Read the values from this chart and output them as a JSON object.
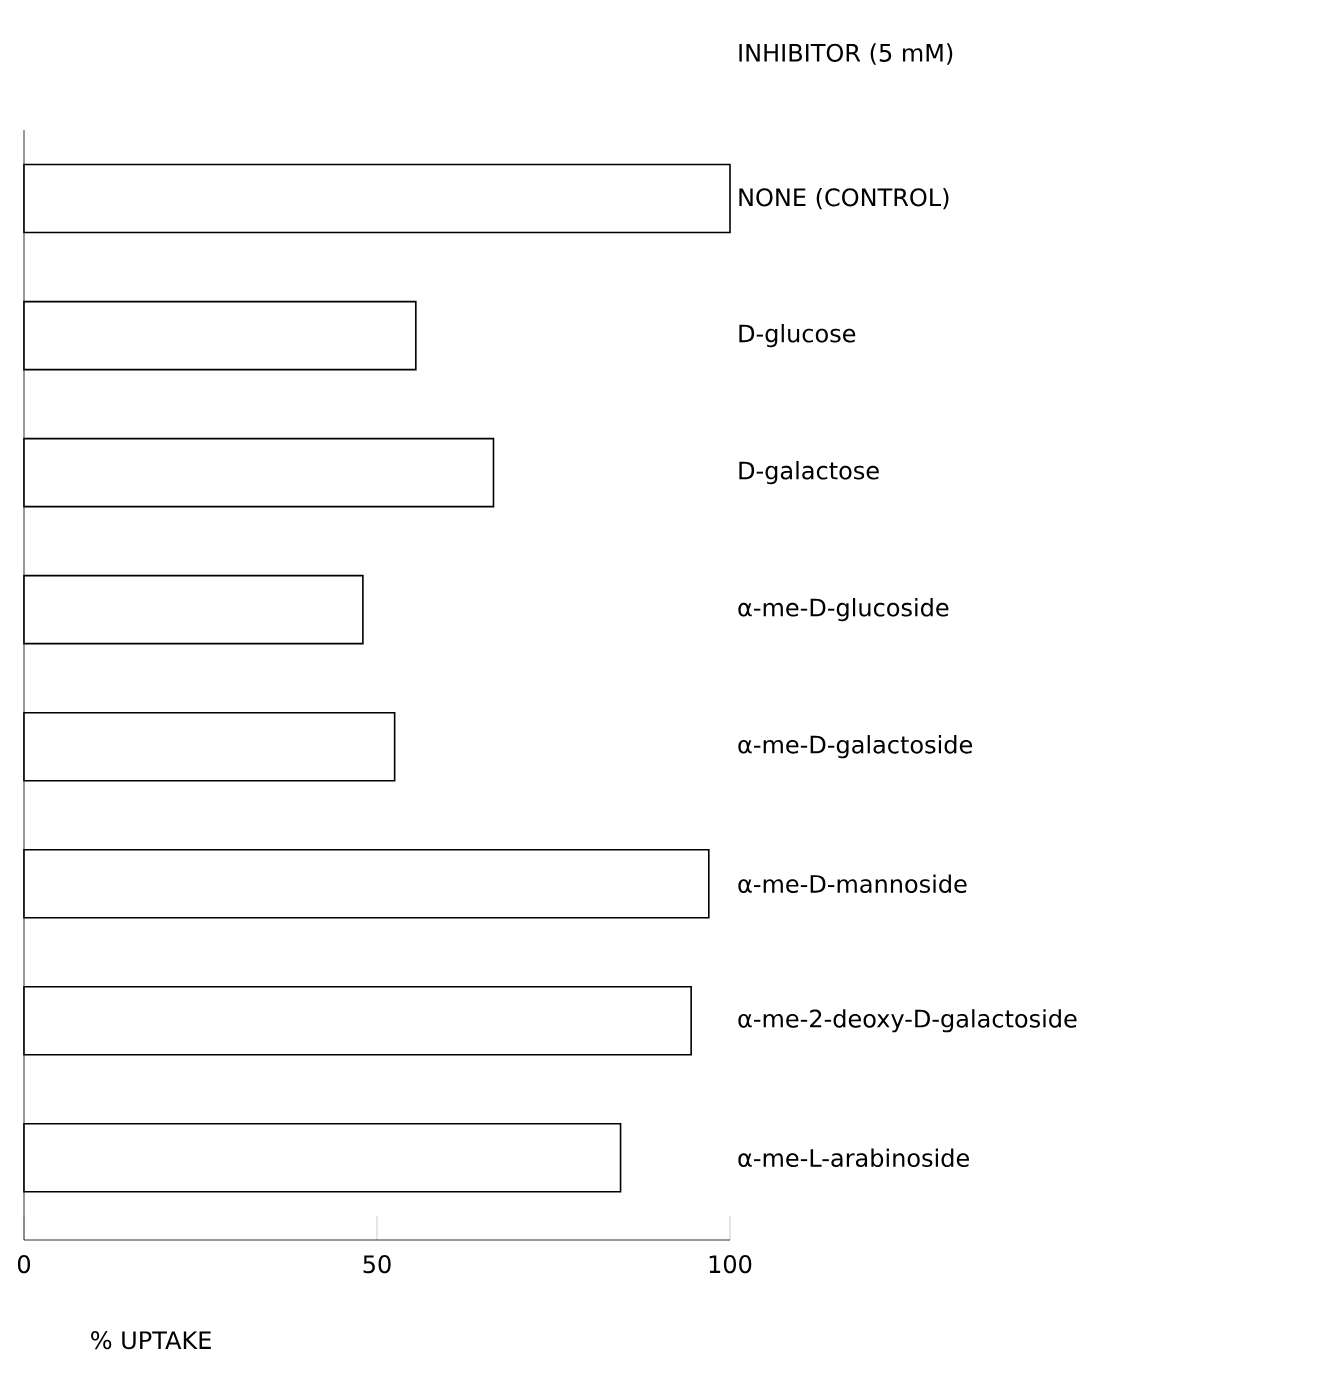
{
  "chart_data": {
    "type": "bar",
    "orientation": "horizontal",
    "title": "INHIBITOR (5 mM)",
    "xlabel": "% UPTAKE",
    "categories": [
      "NONE (CONTROL)",
      "D-glucose",
      "D-galactose",
      "α-me-D-glucoside",
      "α-me-D-galactoside",
      "α-me-D-mannoside",
      "α-me-2-deoxy-D-galactoside",
      "α-me-L-arabinoside"
    ],
    "values": [
      100,
      55.5,
      66.5,
      48,
      52.5,
      97,
      94.5,
      84.5
    ],
    "color": "#ffffff",
    "xlim": [
      0,
      100
    ],
    "xticks": [
      0,
      50,
      100
    ]
  }
}
